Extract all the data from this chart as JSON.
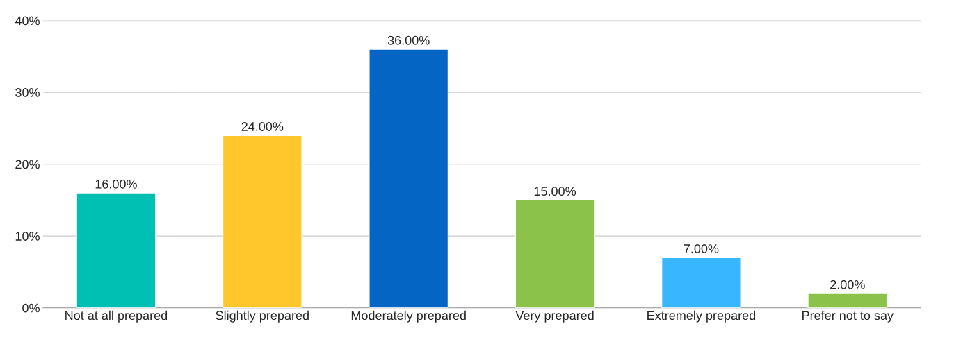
{
  "chart_data": {
    "type": "bar",
    "categories": [
      "Not at all prepared",
      "Slightly prepared",
      "Moderately prepared",
      "Very prepared",
      "Extremely prepared",
      "Prefer not to say"
    ],
    "values": [
      16,
      24,
      36,
      15,
      7,
      2
    ],
    "colors": [
      "#00bfb3",
      "#ffc72c",
      "#0565c4",
      "#8bc34a",
      "#38b6ff",
      "#8bc34a"
    ],
    "value_labels": [
      "16.00%",
      "24.00%",
      "36.00%",
      "15.00%",
      "7.00%",
      "2.00%"
    ],
    "ylim": [
      0,
      40
    ],
    "yticks": [
      {
        "value": 0,
        "label": "0%"
      },
      {
        "value": 10,
        "label": "10%"
      },
      {
        "value": 20,
        "label": "20%"
      },
      {
        "value": 30,
        "label": "30%"
      },
      {
        "value": 40,
        "label": "40%"
      }
    ],
    "grid": "y",
    "legend": false
  }
}
